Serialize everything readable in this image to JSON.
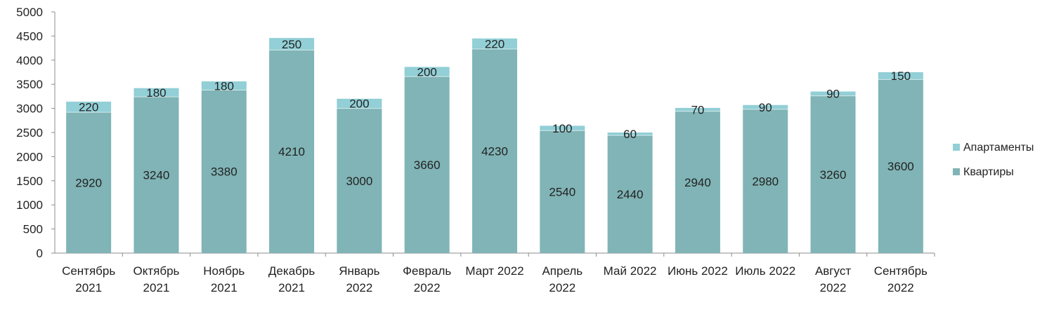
{
  "chart_data": {
    "type": "bar",
    "stacked": true,
    "categories": [
      [
        "Сентябрь",
        "2021"
      ],
      [
        "Октябрь",
        "2021"
      ],
      [
        "Ноябрь",
        "2021"
      ],
      [
        "Декабрь",
        "2021"
      ],
      [
        "Январь",
        "2022"
      ],
      [
        "Февраль",
        "2022"
      ],
      [
        "Март 2022"
      ],
      [
        "Апрель",
        "2022"
      ],
      [
        "Май 2022"
      ],
      [
        "Июнь 2022"
      ],
      [
        "Июль 2022"
      ],
      [
        "Август",
        "2022"
      ],
      [
        "Сентябрь",
        "2022"
      ]
    ],
    "series": [
      {
        "name": "Квартиры",
        "color": "#80b4b6",
        "values": [
          2920,
          3240,
          3380,
          4210,
          3000,
          3660,
          4230,
          2540,
          2440,
          2940,
          2980,
          3260,
          3600
        ]
      },
      {
        "name": "Апартаменты",
        "color": "#92cfd6",
        "values": [
          220,
          180,
          180,
          250,
          200,
          200,
          220,
          100,
          60,
          70,
          90,
          90,
          150
        ]
      }
    ],
    "ylim": [
      0,
      5000
    ],
    "yticks": [
      0,
      500,
      1000,
      1500,
      2000,
      2500,
      3000,
      3500,
      4000,
      4500,
      5000
    ],
    "legend": {
      "position": "right",
      "order": [
        "Апартаменты",
        "Квартиры"
      ]
    },
    "grid": false,
    "axis_color": "#8c8c8c"
  }
}
